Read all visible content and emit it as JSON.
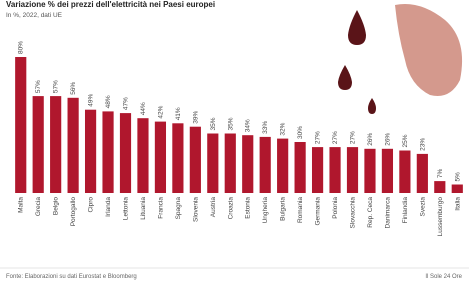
{
  "chart_data": {
    "type": "bar",
    "title": "Variazione % dei prezzi dell'elettricità nei Paesi europei",
    "subtitle": "In %, 2022, dati UE",
    "categories": [
      "Malta",
      "Grecia",
      "Belgio",
      "Portogallo",
      "Cipro",
      "Irlanda",
      "Lettonia",
      "Lituania",
      "Francia",
      "Spagna",
      "Slovenia",
      "Austria",
      "Croazia",
      "Estonia",
      "Ungheria",
      "Bulgaria",
      "Romania",
      "Germania",
      "Polonia",
      "Slovacchia",
      "Rep. Ceca",
      "Danimarca",
      "Finlandia",
      "Svezia",
      "Lussemburgo",
      "Italia"
    ],
    "values": [
      80,
      57,
      57,
      56,
      49,
      48,
      47,
      44,
      42,
      41,
      39,
      35,
      35,
      34,
      33,
      32,
      30,
      27,
      27,
      27,
      26,
      26,
      25,
      23,
      7,
      5
    ],
    "value_labels": [
      "80%",
      "57%",
      "57%",
      "56%",
      "49%",
      "48%",
      "47%",
      "44%",
      "42%",
      "41%",
      "39%",
      "35%",
      "35%",
      "34%",
      "33%",
      "32%",
      "30%",
      "27%",
      "27%",
      "27%",
      "26%",
      "26%",
      "25%",
      "23%",
      "7%",
      "5%"
    ],
    "color": "#b0172d",
    "ylim": [
      0,
      80
    ],
    "source": "Fonte: Elaborazioni su dati Eurostat e Bloomberg",
    "credit": "Il Sole 24 Ore"
  }
}
